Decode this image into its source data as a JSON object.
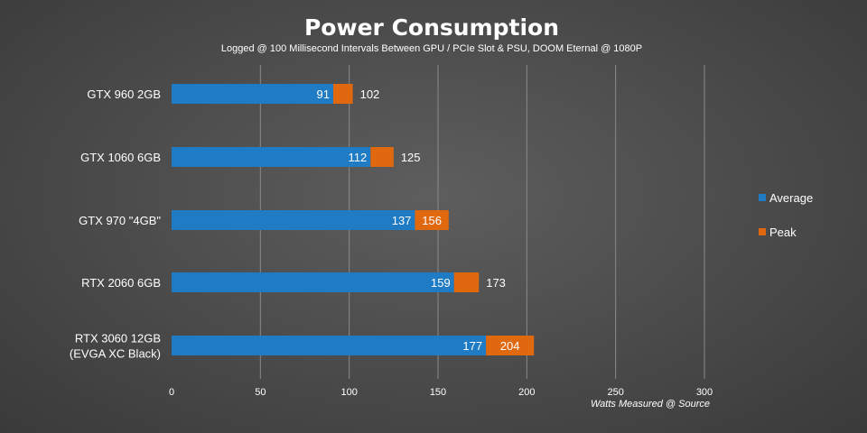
{
  "chart_data": {
    "type": "bar",
    "orientation": "horizontal",
    "title": "Power Consumption",
    "subtitle": "Logged @ 100 Millisecond Intervals Between GPU / PCIe Slot & PSU, DOOM Eternal @ 1080P",
    "xlabel": "Watts Measured @ Source",
    "ylabel": "",
    "xlim": [
      0,
      300
    ],
    "xticks": [
      0,
      50,
      100,
      150,
      200,
      250,
      300
    ],
    "grid": true,
    "legend_position": "right",
    "categories": [
      [
        "GTX 960 2GB"
      ],
      [
        "GTX 1060 6GB"
      ],
      [
        "GTX 970 \"4GB\""
      ],
      [
        "RTX 2060 6GB"
      ],
      [
        "RTX 3060 12GB",
        "(EVGA XC Black)"
      ]
    ],
    "series": [
      {
        "name": "Average",
        "color": "#1f7bc4",
        "values": [
          91,
          112,
          137,
          159,
          177
        ]
      },
      {
        "name": "Peak",
        "color": "#e0680f",
        "values": [
          102,
          125,
          156,
          173,
          204
        ]
      }
    ]
  }
}
